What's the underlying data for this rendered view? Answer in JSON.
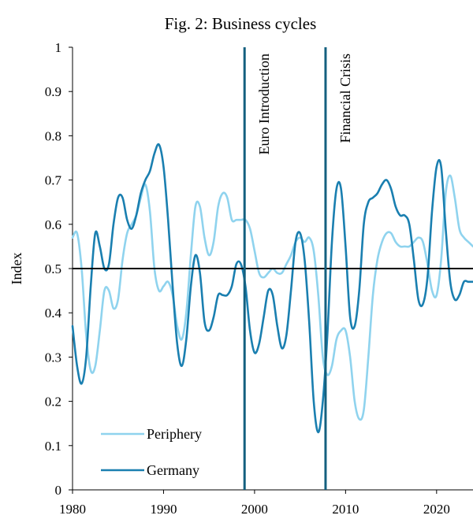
{
  "chart_data": {
    "type": "line",
    "title": "Fig. 2: Business cycles",
    "xlabel": "",
    "ylabel": "Index",
    "xlim": [
      1980,
      2024
    ],
    "ylim": [
      0,
      1
    ],
    "x_ticks": [
      "1980",
      "1990",
      "2000",
      "2010",
      "2020"
    ],
    "y_ticks": [
      "0",
      "0.1",
      "0.2",
      "0.3",
      "0.4",
      "0.5",
      "0.6",
      "0.7",
      "0.8",
      "0.9",
      "1"
    ],
    "reference_line_y": 0.5,
    "grid": false,
    "legend_position": "bottom-left",
    "colors": {
      "periphery": "#8fd3ee",
      "germany": "#1a7fb0",
      "vlines": "#14607f",
      "hline": "#000000"
    },
    "annotations": [
      {
        "text": "Euro Introduction",
        "x": 1998.9
      },
      {
        "text": "Financial Crisis",
        "x": 2007.8
      }
    ],
    "series": [
      {
        "name": "Periphery",
        "x": [
          1980,
          1980.5,
          1981,
          1981.5,
          1982,
          1982.5,
          1983,
          1983.5,
          1984,
          1984.5,
          1985,
          1985.5,
          1986,
          1986.5,
          1987,
          1987.5,
          1988,
          1988.5,
          1989,
          1989.5,
          1990,
          1990.5,
          1991,
          1991.5,
          1992,
          1992.5,
          1993,
          1993.5,
          1994,
          1994.5,
          1995,
          1995.5,
          1996,
          1996.5,
          1997,
          1997.5,
          1998,
          1998.5,
          1999,
          1999.5,
          2000,
          2000.5,
          2001,
          2001.5,
          2002,
          2002.5,
          2003,
          2003.5,
          2004,
          2004.5,
          2005,
          2005.5,
          2006,
          2006.5,
          2007,
          2007.5,
          2008,
          2008.5,
          2009,
          2009.5,
          2010,
          2010.5,
          2011,
          2011.5,
          2012,
          2012.5,
          2013,
          2013.5,
          2014,
          2014.5,
          2015,
          2015.5,
          2016,
          2016.5,
          2017,
          2017.5,
          2018,
          2018.5,
          2019,
          2019.5,
          2020,
          2020.5,
          2021,
          2021.5,
          2022,
          2022.5,
          2023,
          2023.5,
          2024
        ],
        "values": [
          0.57,
          0.58,
          0.5,
          0.35,
          0.27,
          0.28,
          0.36,
          0.45,
          0.45,
          0.41,
          0.43,
          0.52,
          0.58,
          0.6,
          0.62,
          0.66,
          0.69,
          0.63,
          0.5,
          0.45,
          0.46,
          0.47,
          0.44,
          0.37,
          0.34,
          0.4,
          0.53,
          0.64,
          0.64,
          0.57,
          0.53,
          0.56,
          0.64,
          0.67,
          0.66,
          0.61,
          0.61,
          0.61,
          0.61,
          0.59,
          0.54,
          0.49,
          0.48,
          0.49,
          0.5,
          0.49,
          0.49,
          0.51,
          0.53,
          0.56,
          0.57,
          0.56,
          0.57,
          0.54,
          0.44,
          0.3,
          0.26,
          0.28,
          0.34,
          0.36,
          0.36,
          0.3,
          0.2,
          0.16,
          0.18,
          0.3,
          0.44,
          0.52,
          0.56,
          0.58,
          0.58,
          0.56,
          0.55,
          0.55,
          0.55,
          0.56,
          0.57,
          0.56,
          0.51,
          0.45,
          0.44,
          0.52,
          0.67,
          0.71,
          0.66,
          0.59,
          0.57,
          0.56,
          0.55
        ]
      },
      {
        "name": "Germany",
        "x": [
          1980,
          1980.5,
          1981,
          1981.5,
          1982,
          1982.5,
          1983,
          1983.5,
          1984,
          1984.5,
          1985,
          1985.5,
          1986,
          1986.5,
          1987,
          1987.5,
          1988,
          1988.5,
          1989,
          1989.5,
          1990,
          1990.5,
          1991,
          1991.5,
          1992,
          1992.5,
          1993,
          1993.5,
          1994,
          1994.5,
          1995,
          1995.5,
          1996,
          1996.5,
          1997,
          1997.5,
          1998,
          1998.5,
          1999,
          1999.5,
          2000,
          2000.5,
          2001,
          2001.5,
          2002,
          2002.5,
          2003,
          2003.5,
          2004,
          2004.5,
          2005,
          2005.5,
          2006,
          2006.5,
          2007,
          2007.5,
          2008,
          2008.5,
          2009,
          2009.5,
          2010,
          2010.5,
          2011,
          2011.5,
          2012,
          2012.5,
          2013,
          2013.5,
          2014,
          2014.5,
          2015,
          2015.5,
          2016,
          2016.5,
          2017,
          2017.5,
          2018,
          2018.5,
          2019,
          2019.5,
          2020,
          2020.5,
          2021,
          2021.5,
          2022,
          2022.5,
          2023,
          2023.5,
          2024
        ],
        "values": [
          0.37,
          0.28,
          0.24,
          0.3,
          0.46,
          0.58,
          0.55,
          0.5,
          0.51,
          0.6,
          0.66,
          0.66,
          0.61,
          0.59,
          0.62,
          0.67,
          0.7,
          0.72,
          0.76,
          0.78,
          0.73,
          0.61,
          0.46,
          0.33,
          0.28,
          0.34,
          0.46,
          0.53,
          0.49,
          0.38,
          0.36,
          0.39,
          0.44,
          0.44,
          0.44,
          0.46,
          0.51,
          0.51,
          0.46,
          0.36,
          0.31,
          0.33,
          0.39,
          0.45,
          0.44,
          0.37,
          0.32,
          0.35,
          0.45,
          0.56,
          0.58,
          0.52,
          0.38,
          0.2,
          0.13,
          0.2,
          0.35,
          0.56,
          0.68,
          0.68,
          0.55,
          0.39,
          0.37,
          0.45,
          0.6,
          0.65,
          0.66,
          0.67,
          0.69,
          0.7,
          0.68,
          0.64,
          0.62,
          0.62,
          0.6,
          0.52,
          0.43,
          0.42,
          0.48,
          0.63,
          0.73,
          0.73,
          0.59,
          0.47,
          0.43,
          0.44,
          0.47,
          0.47,
          0.47
        ]
      }
    ]
  }
}
